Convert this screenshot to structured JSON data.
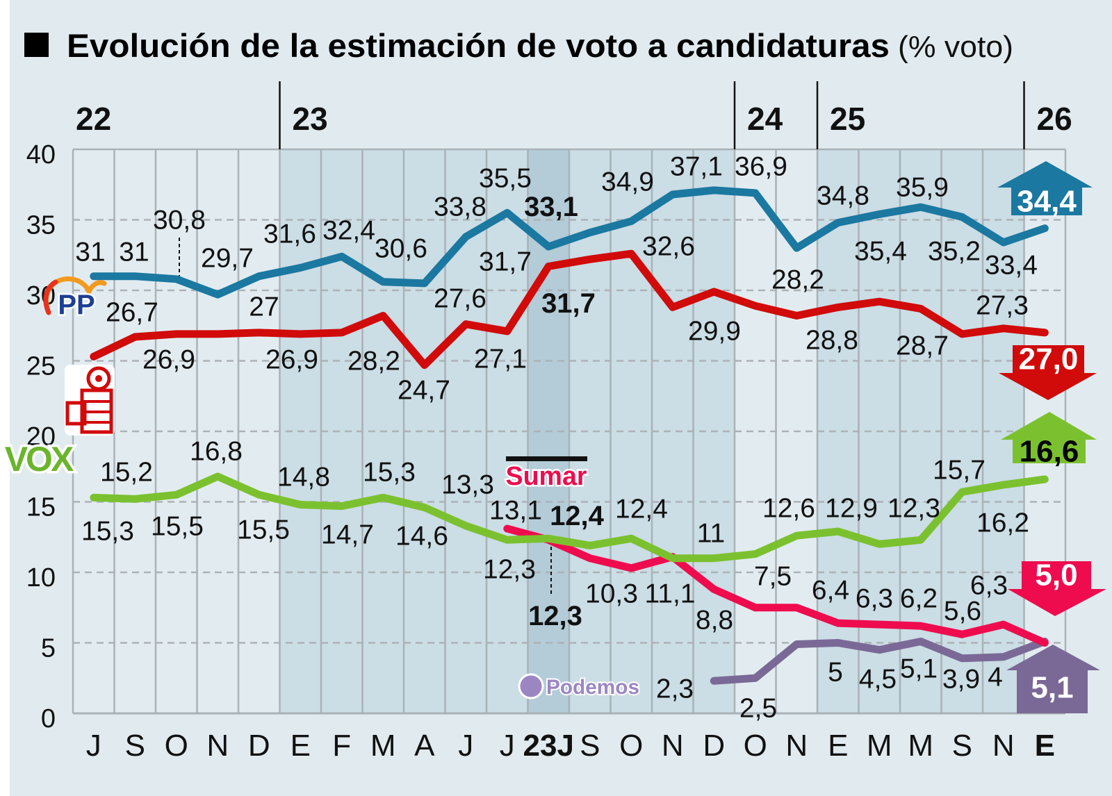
{
  "title": {
    "bold": "Evolución de la estimación de voto a candidaturas",
    "unit": "(% voto)",
    "marker_icon": "black-square-icon"
  },
  "logos": {
    "PP": "PP",
    "PSOE": "PSOE rose-fist logo",
    "VOX": "VOX",
    "Sumar": "Sumar",
    "Podemos": "Podemos"
  },
  "chart_data": {
    "type": "line",
    "title": "Evolución de la estimación de voto a candidaturas (% voto)",
    "x": [
      "J",
      "S",
      "O",
      "N",
      "D",
      "E",
      "F",
      "M",
      "A",
      "J",
      "J",
      "23J",
      "S",
      "O",
      "N",
      "D",
      "O",
      "N",
      "E",
      "M",
      "M",
      "S",
      "N",
      "E"
    ],
    "bold_x": [
      11,
      23
    ],
    "years": [
      {
        "label": "22",
        "start_index": 0
      },
      {
        "label": "23",
        "start_index": 5
      },
      {
        "label": "24",
        "start_index": 16
      },
      {
        "label": "25",
        "start_index": 18
      },
      {
        "label": "26",
        "start_index": 23
      }
    ],
    "highlight_column": "23J",
    "ylim": [
      0,
      40
    ],
    "yticks": [
      "0",
      "5",
      "10",
      "15",
      "20",
      "25",
      "30",
      "35",
      "40"
    ],
    "grid": true,
    "background": "#e1ebef",
    "series": [
      {
        "name": "PP",
        "color": "#1b78a0",
        "values": [
          31,
          31,
          30.8,
          29.7,
          31.0,
          31.6,
          32.4,
          30.6,
          30.5,
          33.8,
          35.5,
          33.1,
          34.1,
          34.9,
          36.8,
          37.1,
          36.9,
          33.0,
          34.8,
          35.4,
          35.9,
          35.2,
          33.4,
          34.4
        ],
        "labels": [
          "31",
          "31",
          "30,8",
          "29,7",
          null,
          "31,6",
          "32,4",
          "30,6",
          null,
          "33,8",
          "35,5",
          null,
          null,
          "34,9",
          null,
          "37,1",
          "36,9",
          null,
          "34,8",
          "35,4",
          "35,9",
          "35,2",
          "33,4",
          null
        ],
        "election_result": "33,1",
        "latest": "34,4",
        "trend": "up"
      },
      {
        "name": "PSOE",
        "color": "#d10a0a",
        "values": [
          25.3,
          26.7,
          26.9,
          26.9,
          27.0,
          26.9,
          27.0,
          28.2,
          24.7,
          27.6,
          27.1,
          31.7,
          32.2,
          32.6,
          28.8,
          29.9,
          28.9,
          28.2,
          28.8,
          29.2,
          28.7,
          26.9,
          27.3,
          27.0
        ],
        "labels": [
          null,
          "26,7",
          "26,9",
          null,
          "27",
          "26,9",
          null,
          "28,2",
          "24,7",
          "27,6",
          "27,1",
          "31,7",
          null,
          "32,6",
          null,
          "29,9",
          null,
          "28,2",
          "28,8",
          null,
          "28,7",
          null,
          "27,3",
          null
        ],
        "election_result": "31,7",
        "latest": "27,0",
        "trend": "down"
      },
      {
        "name": "VOX",
        "color": "#7bc12f",
        "values": [
          15.3,
          15.2,
          15.5,
          16.8,
          15.5,
          14.8,
          14.7,
          15.3,
          14.6,
          13.3,
          12.3,
          12.4,
          11.9,
          12.4,
          11.0,
          11.0,
          11.3,
          12.6,
          12.9,
          12.0,
          12.3,
          15.7,
          16.2,
          16.6
        ],
        "labels": [
          "15,3",
          "15,2",
          "15,5",
          "16,8",
          "15,5",
          "14,8",
          "14,7",
          "15,3",
          "14,6",
          "13,3",
          "12,3",
          null,
          null,
          "12,4",
          null,
          "11",
          null,
          "12,6",
          "12,9",
          null,
          "12,3",
          "15,7",
          "16,2",
          null
        ],
        "election_result": "12,4",
        "latest": "16,6",
        "trend": "up"
      },
      {
        "name": "Sumar",
        "color": "#ee0c4e",
        "values": [
          null,
          null,
          null,
          null,
          null,
          null,
          null,
          null,
          null,
          null,
          13.1,
          12.3,
          11.0,
          10.3,
          11.1,
          8.8,
          7.5,
          7.5,
          6.4,
          6.3,
          6.2,
          5.6,
          6.3,
          5.0
        ],
        "labels": [
          null,
          null,
          null,
          null,
          null,
          null,
          null,
          null,
          null,
          null,
          "13,1",
          null,
          null,
          "10,3",
          "11,1",
          "8,8",
          "7,5",
          null,
          "6,4",
          "6,3",
          "6,2",
          "5,6",
          "6,3",
          null
        ],
        "election_result": "12,3",
        "latest": "5,0",
        "trend": "down"
      },
      {
        "name": "Podemos",
        "color": "#7a6996",
        "values": [
          null,
          null,
          null,
          null,
          null,
          null,
          null,
          null,
          null,
          null,
          null,
          null,
          null,
          null,
          null,
          2.3,
          2.5,
          4.9,
          5.0,
          4.5,
          5.1,
          3.9,
          4.0,
          5.1
        ],
        "labels": [
          null,
          null,
          null,
          null,
          null,
          null,
          null,
          null,
          null,
          null,
          null,
          null,
          null,
          null,
          null,
          "2,3",
          "2,5",
          null,
          "5",
          "4,5",
          "5,1",
          "3,9",
          "4",
          null
        ],
        "election_result": null,
        "latest": "5,1",
        "trend": "up"
      }
    ]
  }
}
